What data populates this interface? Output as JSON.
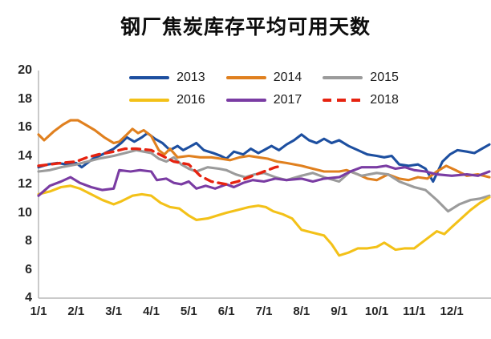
{
  "chart_data": {
    "type": "line",
    "title": "钢厂焦炭库存平均可用天数",
    "xlabel": "",
    "ylabel": "",
    "x_axis": {
      "tick_labels": [
        "1/1",
        "2/1",
        "3/1",
        "4/1",
        "5/1",
        "6/1",
        "7/1",
        "8/1",
        "9/1",
        "10/1",
        "11/1",
        "12/1"
      ],
      "range_months": [
        1,
        13
      ]
    },
    "y_axis": {
      "min": 4,
      "max": 20,
      "step": 2,
      "tick_labels": [
        "4",
        "6",
        "8",
        "10",
        "12",
        "14",
        "16",
        "18",
        "20"
      ]
    },
    "grid": "off",
    "legend_position": "top-inside, two rows, centered",
    "axis_line_color": "#b8b8b8",
    "series": [
      {
        "name": "2013",
        "color": "#1d4fa0",
        "dash": false,
        "points": [
          [
            1,
            13.2
          ],
          [
            1.25,
            13.4
          ],
          [
            1.5,
            13.5
          ],
          [
            1.75,
            13.4
          ],
          [
            2,
            13.5
          ],
          [
            2.15,
            13.2
          ],
          [
            2.45,
            13.8
          ],
          [
            2.7,
            14.1
          ],
          [
            3,
            14.5
          ],
          [
            3.2,
            14.9
          ],
          [
            3.35,
            15.3
          ],
          [
            3.55,
            15.0
          ],
          [
            3.75,
            15.3
          ],
          [
            3.9,
            15.6
          ],
          [
            4.1,
            15.2
          ],
          [
            4.3,
            14.9
          ],
          [
            4.5,
            14.4
          ],
          [
            4.7,
            14.7
          ],
          [
            4.85,
            14.4
          ],
          [
            5,
            14.6
          ],
          [
            5.2,
            14.9
          ],
          [
            5.4,
            14.4
          ],
          [
            5.65,
            14.2
          ],
          [
            5.85,
            14.0
          ],
          [
            6,
            13.8
          ],
          [
            6.2,
            14.3
          ],
          [
            6.45,
            14.1
          ],
          [
            6.65,
            14.5
          ],
          [
            6.85,
            14.2
          ],
          [
            7,
            14.4
          ],
          [
            7.2,
            14.7
          ],
          [
            7.4,
            14.4
          ],
          [
            7.6,
            14.8
          ],
          [
            7.8,
            15.1
          ],
          [
            8,
            15.5
          ],
          [
            8.2,
            15.1
          ],
          [
            8.4,
            14.9
          ],
          [
            8.6,
            15.2
          ],
          [
            8.8,
            14.9
          ],
          [
            9,
            15.1
          ],
          [
            9.25,
            14.7
          ],
          [
            9.5,
            14.4
          ],
          [
            9.75,
            14.1
          ],
          [
            10,
            14.0
          ],
          [
            10.2,
            13.9
          ],
          [
            10.4,
            14.0
          ],
          [
            10.6,
            13.4
          ],
          [
            10.85,
            13.3
          ],
          [
            11.1,
            13.4
          ],
          [
            11.3,
            13.1
          ],
          [
            11.5,
            12.2
          ],
          [
            11.75,
            13.6
          ],
          [
            11.95,
            14.1
          ],
          [
            12.15,
            14.4
          ],
          [
            12.4,
            14.3
          ],
          [
            12.6,
            14.2
          ],
          [
            12.8,
            14.5
          ],
          [
            13,
            14.8
          ]
        ]
      },
      {
        "name": "2014",
        "color": "#e0801f",
        "dash": false,
        "points": [
          [
            1,
            15.5
          ],
          [
            1.15,
            15.1
          ],
          [
            1.4,
            15.7
          ],
          [
            1.65,
            16.2
          ],
          [
            1.85,
            16.5
          ],
          [
            2.05,
            16.5
          ],
          [
            2.25,
            16.2
          ],
          [
            2.5,
            15.8
          ],
          [
            2.75,
            15.3
          ],
          [
            3,
            14.9
          ],
          [
            3.15,
            15.0
          ],
          [
            3.35,
            15.5
          ],
          [
            3.5,
            15.9
          ],
          [
            3.65,
            15.6
          ],
          [
            3.8,
            15.8
          ],
          [
            4,
            15.4
          ],
          [
            4.2,
            14.4
          ],
          [
            4.35,
            14.1
          ],
          [
            4.5,
            14.5
          ],
          [
            4.7,
            13.9
          ],
          [
            5,
            14.0
          ],
          [
            5.3,
            13.9
          ],
          [
            5.6,
            13.9
          ],
          [
            5.85,
            13.8
          ],
          [
            6.1,
            13.7
          ],
          [
            6.35,
            13.9
          ],
          [
            6.6,
            14.0
          ],
          [
            6.85,
            13.9
          ],
          [
            7.1,
            13.8
          ],
          [
            7.35,
            13.6
          ],
          [
            7.6,
            13.5
          ],
          [
            8,
            13.3
          ],
          [
            8.3,
            13.1
          ],
          [
            8.6,
            12.9
          ],
          [
            9,
            12.9
          ],
          [
            9.2,
            13.0
          ],
          [
            9.5,
            12.7
          ],
          [
            9.75,
            12.4
          ],
          [
            10,
            12.3
          ],
          [
            10.3,
            12.7
          ],
          [
            10.6,
            12.4
          ],
          [
            10.85,
            12.3
          ],
          [
            11.1,
            12.5
          ],
          [
            11.35,
            12.4
          ],
          [
            11.6,
            12.9
          ],
          [
            11.85,
            13.3
          ],
          [
            12.1,
            13.0
          ],
          [
            12.4,
            12.6
          ],
          [
            12.7,
            12.7
          ],
          [
            13,
            12.5
          ]
        ]
      },
      {
        "name": "2015",
        "color": "#9b9b9b",
        "dash": false,
        "points": [
          [
            1,
            12.9
          ],
          [
            1.3,
            13.0
          ],
          [
            1.6,
            13.2
          ],
          [
            2,
            13.4
          ],
          [
            2.3,
            13.6
          ],
          [
            2.6,
            13.8
          ],
          [
            3,
            14.0
          ],
          [
            3.3,
            14.2
          ],
          [
            3.6,
            14.4
          ],
          [
            3.8,
            14.3
          ],
          [
            4,
            14.2
          ],
          [
            4.2,
            13.8
          ],
          [
            4.4,
            13.6
          ],
          [
            4.6,
            13.9
          ],
          [
            4.8,
            13.4
          ],
          [
            5,
            13.1
          ],
          [
            5.2,
            12.9
          ],
          [
            5.5,
            13.2
          ],
          [
            5.8,
            13.1
          ],
          [
            6,
            13.0
          ],
          [
            6.25,
            12.7
          ],
          [
            6.5,
            12.5
          ],
          [
            6.75,
            12.7
          ],
          [
            7,
            12.8
          ],
          [
            7.3,
            12.5
          ],
          [
            7.6,
            12.3
          ],
          [
            8,
            12.6
          ],
          [
            8.3,
            12.8
          ],
          [
            8.6,
            12.5
          ],
          [
            9,
            12.2
          ],
          [
            9.3,
            12.9
          ],
          [
            9.6,
            12.6
          ],
          [
            10,
            12.8
          ],
          [
            10.3,
            12.7
          ],
          [
            10.6,
            12.2
          ],
          [
            11,
            11.8
          ],
          [
            11.3,
            11.6
          ],
          [
            11.6,
            10.9
          ],
          [
            11.9,
            10.1
          ],
          [
            12.2,
            10.6
          ],
          [
            12.5,
            10.9
          ],
          [
            12.75,
            11.0
          ],
          [
            13,
            11.2
          ]
        ]
      },
      {
        "name": "2016",
        "color": "#f3c118",
        "dash": false,
        "points": [
          [
            1,
            11.3
          ],
          [
            1.3,
            11.5
          ],
          [
            1.6,
            11.8
          ],
          [
            1.85,
            11.9
          ],
          [
            2.1,
            11.7
          ],
          [
            2.4,
            11.3
          ],
          [
            2.7,
            10.9
          ],
          [
            3,
            10.6
          ],
          [
            3.2,
            10.8
          ],
          [
            3.5,
            11.2
          ],
          [
            3.75,
            11.3
          ],
          [
            4,
            11.2
          ],
          [
            4.25,
            10.7
          ],
          [
            4.5,
            10.4
          ],
          [
            4.75,
            10.3
          ],
          [
            5,
            9.8
          ],
          [
            5.2,
            9.5
          ],
          [
            5.5,
            9.6
          ],
          [
            5.75,
            9.8
          ],
          [
            6,
            10.0
          ],
          [
            6.3,
            10.2
          ],
          [
            6.6,
            10.4
          ],
          [
            6.85,
            10.5
          ],
          [
            7.05,
            10.4
          ],
          [
            7.25,
            10.1
          ],
          [
            7.5,
            9.9
          ],
          [
            7.75,
            9.6
          ],
          [
            8,
            8.8
          ],
          [
            8.3,
            8.6
          ],
          [
            8.6,
            8.4
          ],
          [
            8.8,
            7.8
          ],
          [
            9,
            7.0
          ],
          [
            9.25,
            7.2
          ],
          [
            9.5,
            7.5
          ],
          [
            9.75,
            7.5
          ],
          [
            10,
            7.6
          ],
          [
            10.2,
            7.9
          ],
          [
            10.5,
            7.4
          ],
          [
            10.75,
            7.5
          ],
          [
            11,
            7.5
          ],
          [
            11.3,
            8.1
          ],
          [
            11.6,
            8.7
          ],
          [
            11.8,
            8.5
          ],
          [
            12,
            9.0
          ],
          [
            12.25,
            9.6
          ],
          [
            12.5,
            10.2
          ],
          [
            12.75,
            10.7
          ],
          [
            13,
            11.1
          ]
        ]
      },
      {
        "name": "2017",
        "color": "#7a3ca3",
        "dash": false,
        "points": [
          [
            1,
            11.2
          ],
          [
            1.3,
            11.9
          ],
          [
            1.6,
            12.2
          ],
          [
            1.85,
            12.5
          ],
          [
            2.1,
            12.1
          ],
          [
            2.4,
            11.8
          ],
          [
            2.7,
            11.6
          ],
          [
            3,
            11.7
          ],
          [
            3.15,
            13.0
          ],
          [
            3.45,
            12.9
          ],
          [
            3.7,
            13.0
          ],
          [
            4,
            12.9
          ],
          [
            4.15,
            12.3
          ],
          [
            4.4,
            12.4
          ],
          [
            4.6,
            12.1
          ],
          [
            4.8,
            12.0
          ],
          [
            5,
            12.2
          ],
          [
            5.2,
            11.7
          ],
          [
            5.45,
            11.9
          ],
          [
            5.7,
            11.7
          ],
          [
            6,
            12.0
          ],
          [
            6.2,
            11.8
          ],
          [
            6.45,
            12.1
          ],
          [
            6.7,
            12.3
          ],
          [
            7,
            12.2
          ],
          [
            7.3,
            12.4
          ],
          [
            7.6,
            12.3
          ],
          [
            8,
            12.4
          ],
          [
            8.3,
            12.2
          ],
          [
            8.6,
            12.4
          ],
          [
            9,
            12.5
          ],
          [
            9.3,
            12.9
          ],
          [
            9.6,
            13.2
          ],
          [
            10,
            13.2
          ],
          [
            10.25,
            13.3
          ],
          [
            10.5,
            13.1
          ],
          [
            10.75,
            13.2
          ],
          [
            11,
            13.0
          ],
          [
            11.3,
            12.9
          ],
          [
            11.6,
            12.7
          ],
          [
            12,
            12.6
          ],
          [
            12.4,
            12.7
          ],
          [
            12.7,
            12.6
          ],
          [
            13,
            12.9
          ]
        ]
      },
      {
        "name": "2018",
        "color": "#e62310",
        "dash": true,
        "points": [
          [
            1,
            13.3
          ],
          [
            1.3,
            13.4
          ],
          [
            1.6,
            13.5
          ],
          [
            2,
            13.6
          ],
          [
            2.3,
            13.9
          ],
          [
            2.6,
            14.1
          ],
          [
            3,
            14.3
          ],
          [
            3.3,
            14.5
          ],
          [
            3.6,
            14.5
          ],
          [
            4,
            14.4
          ],
          [
            4.3,
            14.0
          ],
          [
            4.6,
            13.6
          ],
          [
            5,
            13.4
          ],
          [
            5.3,
            12.6
          ],
          [
            5.6,
            12.2
          ],
          [
            6,
            12.0
          ],
          [
            6.3,
            12.2
          ],
          [
            6.6,
            12.5
          ],
          [
            7,
            12.9
          ],
          [
            7.3,
            13.2
          ],
          [
            7.5,
            13.3
          ]
        ]
      }
    ]
  }
}
